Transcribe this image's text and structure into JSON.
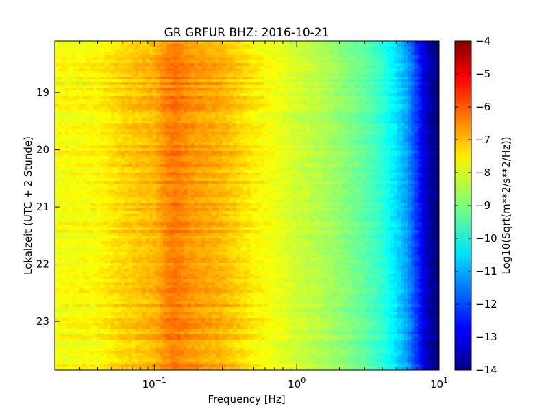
{
  "chart_data": {
    "type": "heatmap",
    "title": "GR GRFUR BHZ: 2016-10-21",
    "xlabel": "Frequency [Hz]",
    "ylabel": "Lokalzeit (UTC + 2 Stunde)",
    "x_scale": "log",
    "xlim": [
      0.02,
      10
    ],
    "ylim": [
      18.1,
      23.85
    ],
    "y_inverted": true,
    "x_ticks": [
      {
        "value": 0.1,
        "base": "10",
        "exp": "−1"
      },
      {
        "value": 1,
        "base": "10",
        "exp": "0"
      },
      {
        "value": 10,
        "base": "10",
        "exp": "1"
      }
    ],
    "y_ticks": [
      19,
      20,
      21,
      22,
      23
    ],
    "colorbar": {
      "label": "Log10(Sqrt(m**2/s**2/Hz))",
      "range": [
        -14,
        -4
      ],
      "ticks": [
        "−4",
        "−5",
        "−6",
        "−7",
        "−8",
        "−9",
        "−10",
        "−11",
        "−12",
        "−13",
        "−14"
      ],
      "colormap": "jet"
    },
    "spectrum_profile": {
      "freq_hz": [
        0.02,
        0.04,
        0.06,
        0.1,
        0.12,
        0.14,
        0.18,
        0.3,
        0.5,
        0.8,
        1.0,
        1.5,
        2.0,
        3.0,
        4.0,
        5.0,
        6.0,
        7.0,
        8.0,
        9.0,
        10.0
      ],
      "log10_amplitude": [
        -7.8,
        -7.7,
        -7.3,
        -7.0,
        -6.6,
        -6.4,
        -6.7,
        -7.0,
        -7.6,
        -8.0,
        -8.2,
        -8.5,
        -8.8,
        -9.3,
        -9.8,
        -10.5,
        -11.2,
        -12.2,
        -13.2,
        -13.8,
        -14.0
      ]
    }
  }
}
